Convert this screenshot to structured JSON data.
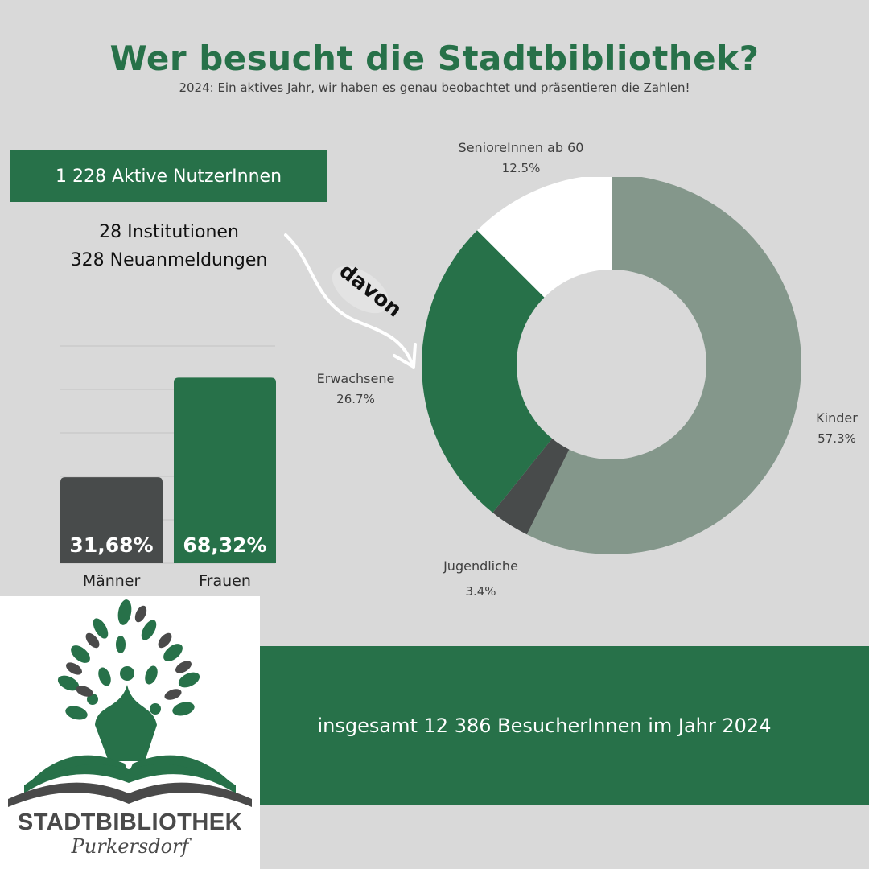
{
  "header": {
    "title": "Wer besucht die Stadtbibliothek?",
    "subtitle": "2024: Ein aktives Jahr, wir haben es genau beobachtet und präsentieren die Zahlen!"
  },
  "stats": {
    "active_users": "1 228 Aktive NutzerInnen",
    "institutions": "28 Institutionen",
    "registrations": "328 Neuanmeldungen",
    "arrow_label": "davon"
  },
  "footer": {
    "total_visitors": "insgesamt 12 386 BesucherInnen im Jahr 2024"
  },
  "logo": {
    "name": "STADTBIBLIOTHEK",
    "town": "Purkersdorf"
  },
  "colors": {
    "brand_green": "#277149",
    "sage": "#84978b",
    "dark_gray": "#484b4b",
    "white": "#ffffff",
    "background": "#d9d9d9"
  },
  "chart_data": [
    {
      "type": "pie",
      "donut": true,
      "slices": [
        {
          "label": "Kinder",
          "value": 57.3,
          "pct_label": "57.3%",
          "color": "#84978b"
        },
        {
          "label": "Jugendliche",
          "value": 3.4,
          "pct_label": "3.4%",
          "color": "#484b4b"
        },
        {
          "label": "Erwachsene",
          "value": 26.7,
          "pct_label": "26.7%",
          "color": "#277149"
        },
        {
          "label": "SenioreInnen ab 60",
          "value": 12.5,
          "pct_label": "12.5%",
          "color": "#ffffff"
        }
      ]
    },
    {
      "type": "bar",
      "categories": [
        "Männer",
        "Frauen"
      ],
      "values": [
        31.68,
        68.32
      ],
      "value_labels": [
        "31,68%",
        "68,32%"
      ],
      "colors": [
        "#484b4b",
        "#277149"
      ],
      "ylim": [
        0,
        100
      ],
      "grid": true
    }
  ]
}
